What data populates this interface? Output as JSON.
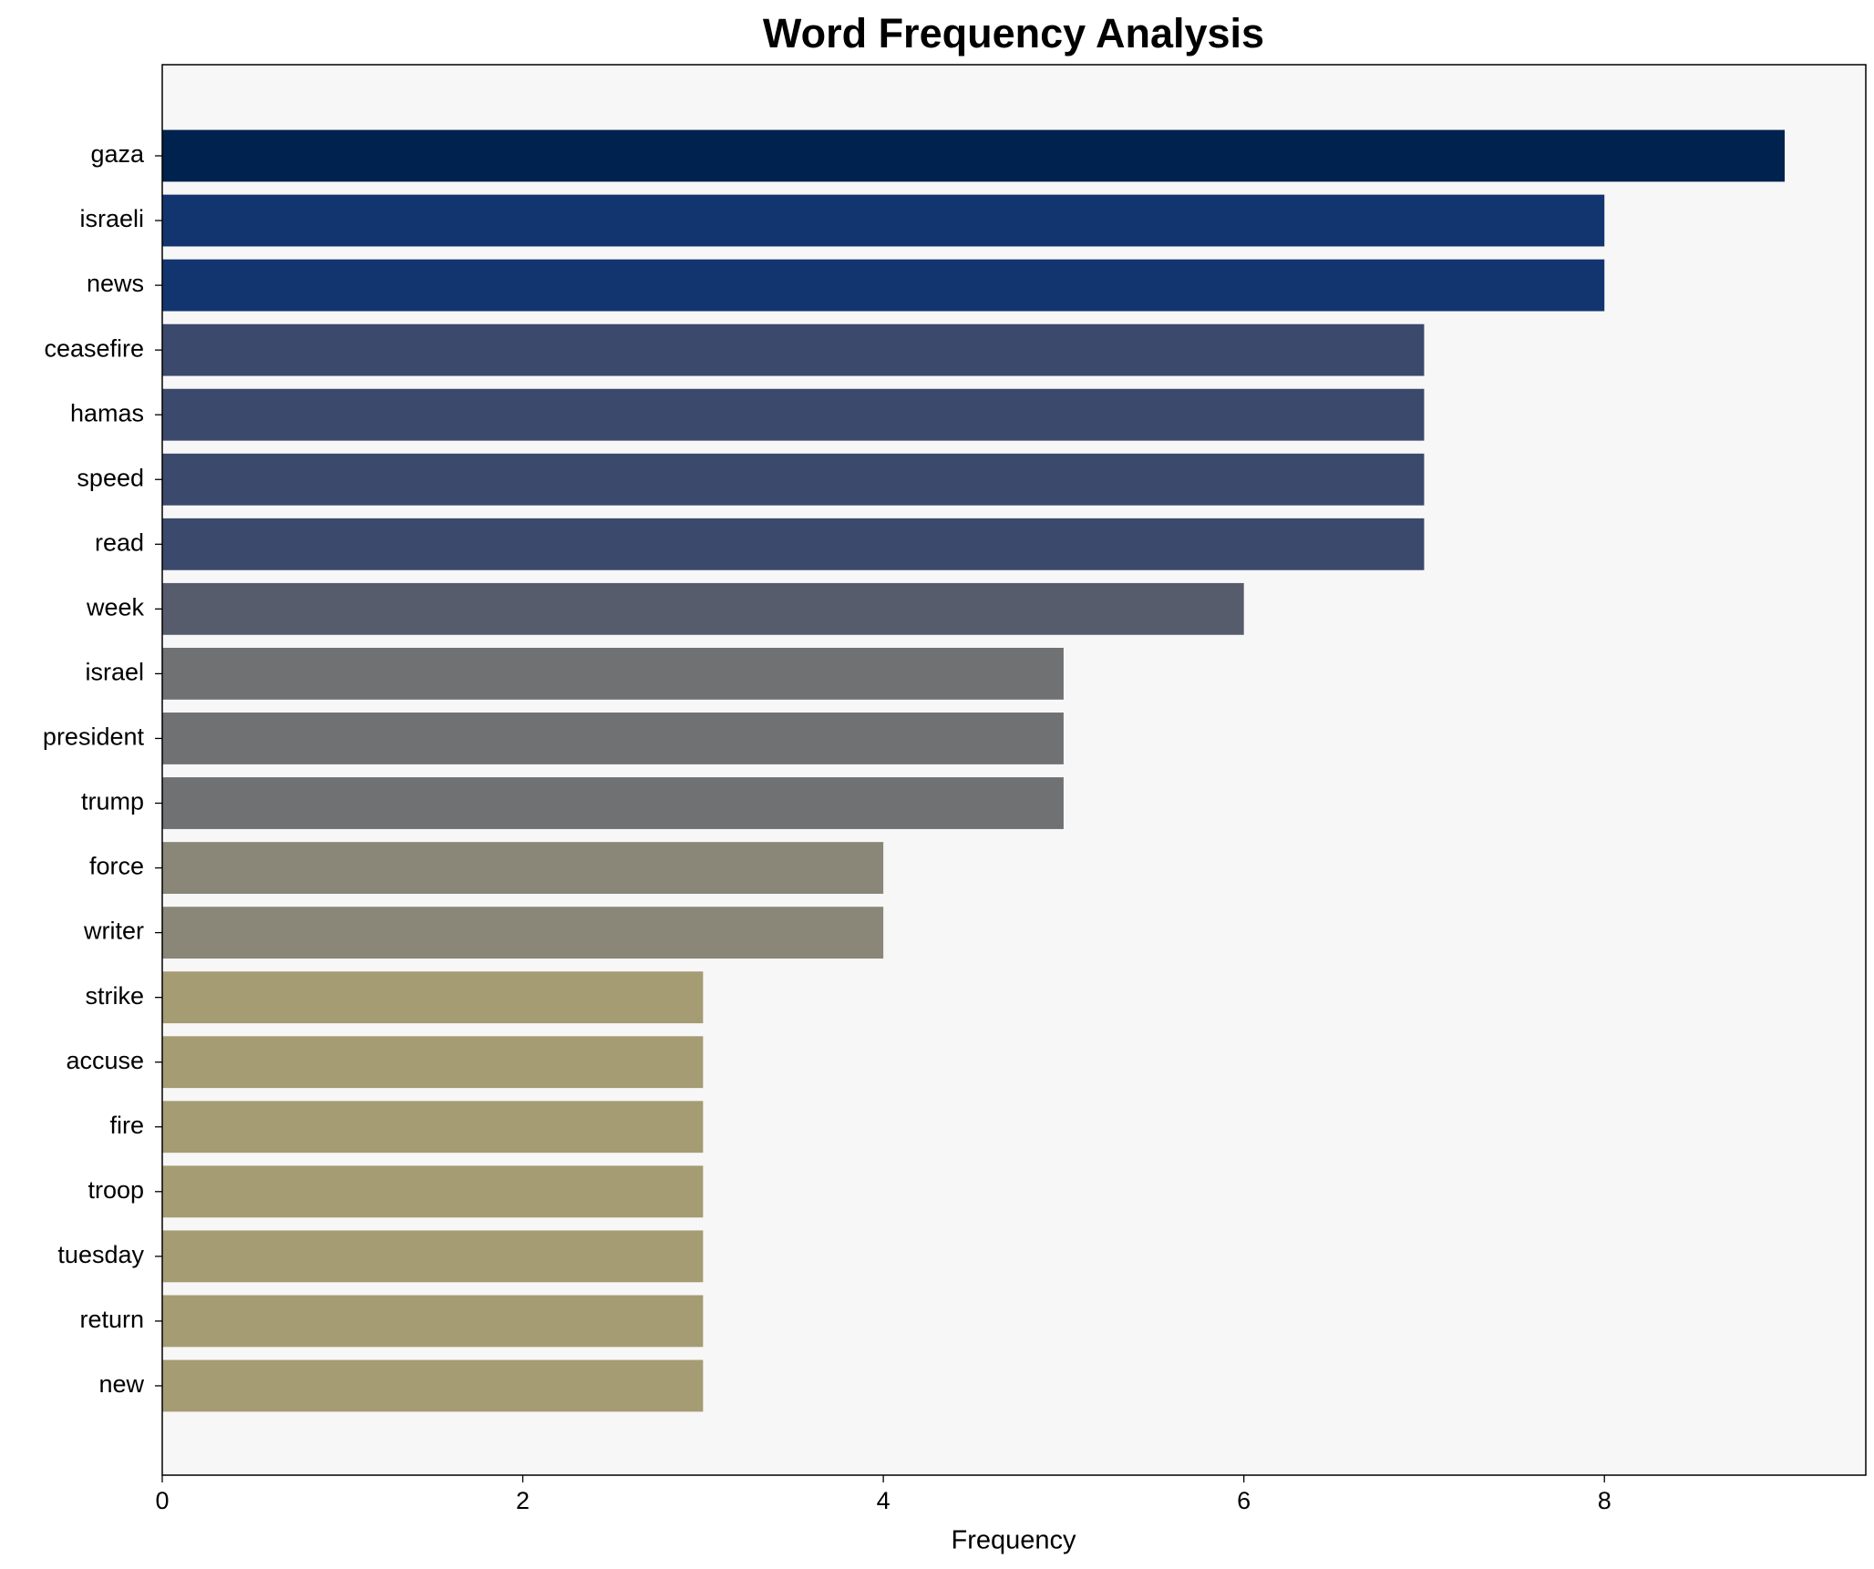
{
  "chart_data": {
    "type": "bar",
    "orientation": "horizontal",
    "title": "Word Frequency Analysis",
    "x_label": "Frequency",
    "categories": [
      "gaza",
      "israeli",
      "news",
      "ceasefire",
      "hamas",
      "speed",
      "read",
      "week",
      "israel",
      "president",
      "trump",
      "force",
      "writer",
      "strike",
      "accuse",
      "fire",
      "troop",
      "tuesday",
      "return",
      "new"
    ],
    "values": [
      9,
      8,
      8,
      7,
      7,
      7,
      7,
      6,
      5,
      5,
      5,
      4,
      4,
      3,
      3,
      3,
      3,
      3,
      3,
      3
    ],
    "colors": [
      "#00224e",
      "#123570",
      "#123570",
      "#3b496c",
      "#3b496c",
      "#3b496c",
      "#3b496c",
      "#575c6d",
      "#707173",
      "#707173",
      "#707173",
      "#8a8678",
      "#8a8678",
      "#a59c74",
      "#a59c74",
      "#a59c74",
      "#a59c74",
      "#a59c74",
      "#a59c74",
      "#a59c74"
    ],
    "xlim": [
      0,
      9.45
    ],
    "xticks": [
      0,
      2,
      4,
      6,
      8
    ],
    "grid": false
  }
}
